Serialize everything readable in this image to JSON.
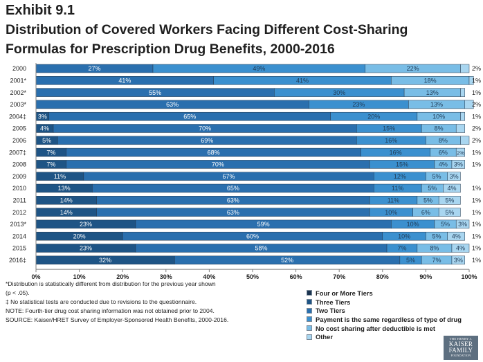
{
  "header": {
    "exhibit": "Exhibit 9.1",
    "title_line1": "Distribution of Covered Workers Facing Different Cost-Sharing",
    "title_line2": "Formulas for Prescription Drug Benefits, 2000-2016"
  },
  "chart_data": {
    "type": "bar",
    "orientation": "horizontal",
    "stacked": true,
    "categories": [
      "2000",
      "2001*",
      "2002*",
      "2003*",
      "2004‡",
      "2005",
      "2006",
      "2007‡",
      "2008",
      "2009",
      "2010",
      "2011",
      "2012",
      "2013*",
      "2014",
      "2015",
      "2016‡"
    ],
    "series": [
      {
        "name": "Four or More Tiers",
        "color": "#1a3350",
        "values": [
          0,
          0,
          0,
          0,
          0,
          0,
          0,
          0,
          0,
          0,
          0,
          0,
          0,
          0,
          0,
          0,
          0
        ],
        "labels": [
          "",
          "",
          "",
          "",
          "",
          "",
          "",
          "",
          "",
          "",
          "",
          "",
          "",
          "",
          "",
          "",
          ""
        ]
      },
      {
        "name": "Three Tiers",
        "color": "#1e5485",
        "values": [
          0,
          0,
          0,
          0,
          3,
          4,
          5,
          7,
          7,
          11,
          13,
          14,
          14,
          23,
          20,
          23,
          32
        ],
        "labels": [
          "",
          "",
          "",
          "",
          "3%",
          "4%",
          "5%",
          "7%",
          "7%",
          "11%",
          "13%",
          "14%",
          "14%",
          "23%",
          "20%",
          "23%",
          "32%"
        ]
      },
      {
        "name": "Two Tiers",
        "color": "#2a6fae",
        "values": [
          27,
          41,
          55,
          63,
          65,
          70,
          69,
          68,
          70,
          67,
          65,
          63,
          63,
          59,
          60,
          58,
          52
        ],
        "labels": [
          "27%",
          "41%",
          "55%",
          "63%",
          "65%",
          "70%",
          "69%",
          "68%",
          "70%",
          "67%",
          "65%",
          "63%",
          "63%",
          "59%",
          "60%",
          "58%",
          "52%"
        ]
      },
      {
        "name": "Payment is the same regardless of type of drug",
        "color": "#3b90cf",
        "values": [
          49,
          41,
          30,
          23,
          20,
          15,
          16,
          16,
          15,
          12,
          11,
          11,
          10,
          10,
          10,
          7,
          5
        ],
        "labels": [
          "49%",
          "41%",
          "30%",
          "23%",
          "20%",
          "15%",
          "16%",
          "16%",
          "15%",
          "12%",
          "11%",
          "11%",
          "10%",
          "10%",
          "10%",
          "7%",
          "5%"
        ]
      },
      {
        "name": "No cost sharing after deductible is met",
        "color": "#79bde6",
        "values": [
          22,
          18,
          13,
          13,
          10,
          8,
          8,
          6,
          4,
          5,
          5,
          5,
          6,
          5,
          5,
          8,
          7
        ],
        "labels": [
          "22%",
          "18%",
          "13%",
          "13%",
          "10%",
          "8%",
          "8%",
          "6%",
          "4%",
          "5%",
          "5%",
          "5%",
          "6%",
          "5%",
          "5%",
          "8%",
          "7%"
        ]
      },
      {
        "name": "Other",
        "color": "#a9d6f0",
        "values": [
          2,
          1,
          1,
          2,
          1,
          2,
          2,
          2,
          3,
          3,
          4,
          5,
          5,
          3,
          4,
          4,
          3
        ],
        "labels": [
          "",
          "",
          "",
          "",
          "",
          "",
          "",
          "2%",
          "3%",
          "3%",
          "4%",
          "5%",
          "5%",
          "3%",
          "4%",
          "4%",
          "3%"
        ]
      }
    ],
    "right_labels": [
      "2%",
      "1%",
      "1%",
      "2%",
      "1%",
      "2%",
      "2%",
      "1%",
      "1%",
      "",
      "1%",
      "1%",
      "1%",
      "1%",
      "1%",
      "1%",
      "1%"
    ],
    "xlim": [
      0,
      100
    ],
    "x_ticks": [
      "0%",
      "10%",
      "20%",
      "30%",
      "40%",
      "50%",
      "60%",
      "70%",
      "80%",
      "90%",
      "100%"
    ],
    "grid": false,
    "legend_position": "bottom-right"
  },
  "legend": {
    "items": [
      {
        "label": "Four or More Tiers",
        "color": "#1a3350"
      },
      {
        "label": "Three Tiers",
        "color": "#1e5485"
      },
      {
        "label": "Two Tiers",
        "color": "#2a6fae"
      },
      {
        "label": "Payment is the same regardless of type of drug",
        "color": "#3b90cf"
      },
      {
        "label": "No cost sharing after deductible is met",
        "color": "#79bde6"
      },
      {
        "label": "Other",
        "color": "#a9d6f0"
      }
    ]
  },
  "notes": {
    "line1": "*Distribution is statistically different from distribution for the previous year shown",
    "line2": "(p < .05).",
    "line3": "‡ No statistical tests are conducted due to revisions to the questionnaire.",
    "line4": "NOTE: Fourth-tier drug cost sharing information was not obtained prior to 2004.",
    "line5": "SOURCE: Kaiser/HRET Survey of Employer-Sponsored Health Benefits, 2000-2016."
  },
  "logo": {
    "small_top": "THE HENRY J.",
    "line1": "KAISER",
    "line2": "FAMILY",
    "small_bottom": "FOUNDATION"
  }
}
